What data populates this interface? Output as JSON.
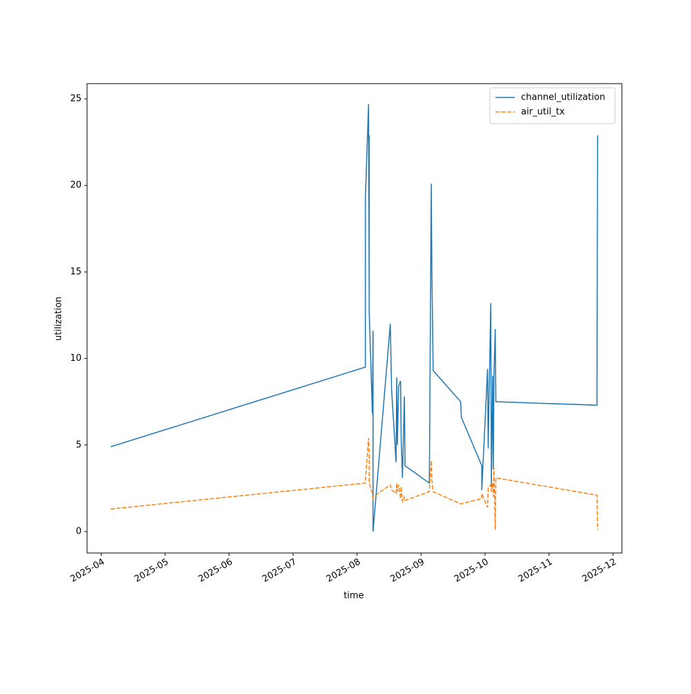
{
  "chart_data": {
    "type": "line",
    "xlabel": "time",
    "ylabel": "utilization",
    "x": [
      4.15,
      8.13,
      8.13,
      8.18,
      8.19,
      8.19,
      8.19,
      8.24,
      8.25,
      8.25,
      8.52,
      8.54,
      8.61,
      8.62,
      8.63,
      8.65,
      8.68,
      8.69,
      8.71,
      8.74,
      8.75,
      9.13,
      9.16,
      9.17,
      9.19,
      9.62,
      9.63,
      9.95,
      9.95,
      10.04,
      10.05,
      10.09,
      10.1,
      10.12,
      10.13,
      10.14,
      10.16,
      10.17,
      11.75,
      11.76
    ],
    "series": [
      {
        "name": "channel_utilization",
        "color": "#1f77b4",
        "dash": false,
        "values": [
          4.9,
          9.5,
          19.2,
          24.7,
          13.7,
          22.9,
          12.7,
          6.8,
          11.6,
          0,
          12.0,
          8.2,
          4.0,
          8.9,
          5.0,
          8.4,
          8.7,
          5.3,
          3.1,
          7.8,
          3.8,
          2.8,
          20.1,
          14.9,
          9.3,
          7.5,
          6.6,
          3.8,
          2.4,
          9.4,
          4.8,
          13.2,
          2.6,
          9.0,
          3.6,
          9.0,
          11.7,
          7.5,
          7.3,
          22.9
        ]
      },
      {
        "name": "air_util_tx",
        "color": "#ff7f0e",
        "dash": true,
        "values": [
          1.3,
          2.8,
          2.9,
          5.4,
          4.5,
          3.0,
          2.8,
          2.2,
          1.8,
          2.0,
          2.7,
          2.4,
          2.2,
          2.8,
          2.3,
          2.7,
          1.9,
          2.6,
          1.7,
          2.0,
          1.8,
          2.3,
          4.1,
          3.0,
          2.3,
          1.6,
          1.6,
          1.9,
          2.2,
          1.4,
          2.5,
          2.7,
          2.3,
          2.8,
          2.0,
          3.7,
          0.1,
          3.1,
          2.1,
          0.1
        ]
      }
    ],
    "xlim": [
      3.78,
      12.14
    ],
    "xticks": [
      {
        "value": 4,
        "label": "2025-04"
      },
      {
        "value": 5,
        "label": "2025-05"
      },
      {
        "value": 6,
        "label": "2025-06"
      },
      {
        "value": 7,
        "label": "2025-07"
      },
      {
        "value": 8,
        "label": "2025-08"
      },
      {
        "value": 9,
        "label": "2025-09"
      },
      {
        "value": 10,
        "label": "2025-10"
      },
      {
        "value": 11,
        "label": "2025-11"
      },
      {
        "value": 12,
        "label": "2025-12"
      }
    ],
    "ylim": [
      -1.24,
      25.88
    ],
    "yticks": [
      0,
      5,
      10,
      15,
      20,
      25
    ],
    "grid": false,
    "legend": "upper right"
  }
}
